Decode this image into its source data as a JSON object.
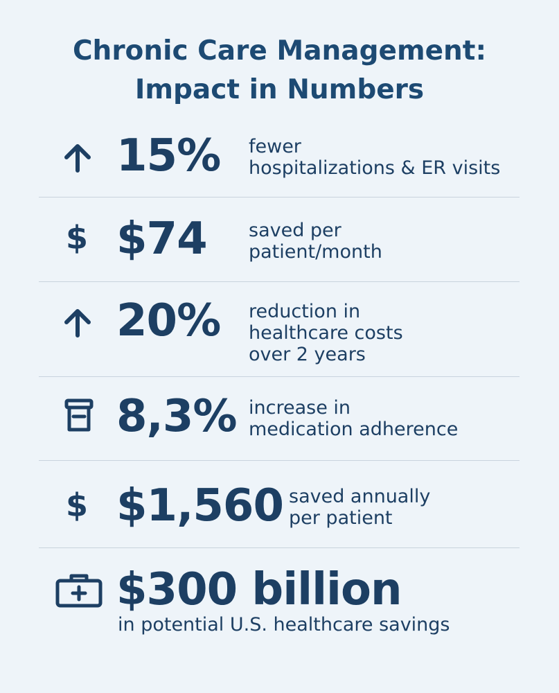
{
  "title": {
    "line1": "Chronic Care Management:",
    "line2": "Impact in Numbers"
  },
  "stats": [
    {
      "icon": "arrow-up-icon",
      "value": "15%",
      "desc": [
        "fewer",
        "hospitalizations & ER visits"
      ]
    },
    {
      "icon": "dollar-icon",
      "value": "$74",
      "desc": [
        "saved per",
        "patient/month"
      ]
    },
    {
      "icon": "arrow-up-icon",
      "value": "20%",
      "desc": [
        "reduction in",
        "healthcare costs",
        "over 2 years"
      ]
    },
    {
      "icon": "pill-bottle-icon",
      "value": "8,3%",
      "desc": [
        "increase in",
        "medication adherence"
      ]
    },
    {
      "icon": "dollar-icon",
      "value": "$1,560",
      "desc": [
        "saved annually",
        "per patient"
      ]
    },
    {
      "icon": "medical-kit-icon",
      "value": "$300 billion",
      "desc": [
        "in potential U.S. healthcare savings"
      ]
    }
  ],
  "icon_glyphs": {
    "dollar": "$"
  },
  "colors": {
    "background": "#eef4f9",
    "text": "#1d3f63",
    "divider": "#c8d3dd"
  }
}
